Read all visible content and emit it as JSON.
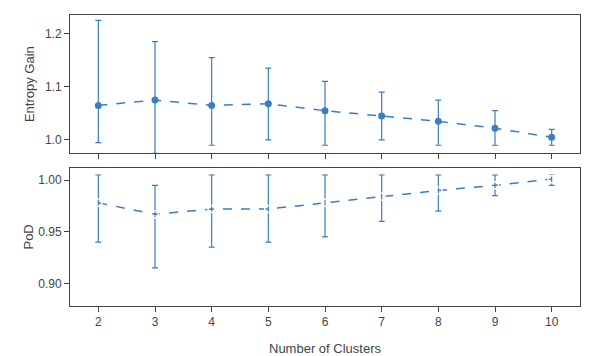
{
  "chart_data": [
    {
      "type": "line",
      "x": [
        2,
        3,
        4,
        5,
        6,
        7,
        8,
        9,
        10
      ],
      "values": [
        1.065,
        1.075,
        1.065,
        1.068,
        1.055,
        1.045,
        1.035,
        1.022,
        1.005
      ],
      "error_plus": [
        0.16,
        0.11,
        0.09,
        0.067,
        0.055,
        0.045,
        0.04,
        0.033,
        0.015
      ],
      "error_minus": [
        0.07,
        0.1,
        0.075,
        0.068,
        0.065,
        0.045,
        0.045,
        0.032,
        0.015
      ],
      "color": "#3a7ebf",
      "line_style": "dashed",
      "marker": "circle",
      "ylabel": "Entropy Gain",
      "xlim": [
        1.5,
        10.5
      ],
      "xticks": [
        2,
        3,
        4,
        5,
        6,
        7,
        8,
        9,
        10
      ],
      "ylim": [
        0.975,
        1.235
      ],
      "yticks": [
        {
          "value": 1.0,
          "label": "1.0"
        },
        1.1,
        1.2
      ],
      "tick_labels": "y",
      "grid": false
    },
    {
      "type": "line",
      "x": [
        2,
        3,
        4,
        5,
        6,
        7,
        8,
        9,
        10
      ],
      "values": [
        0.978,
        0.967,
        0.972,
        0.972,
        0.978,
        0.984,
        0.99,
        0.995,
        1.001
      ],
      "error_plus": [
        0.027,
        0.028,
        0.033,
        0.033,
        0.027,
        0.021,
        0.015,
        0.01,
        0.004
      ],
      "error_minus": [
        0.038,
        0.052,
        0.037,
        0.032,
        0.033,
        0.024,
        0.02,
        0.01,
        0.006
      ],
      "color": "#3a7ebf",
      "line_style": "dashed",
      "marker": "square-open",
      "xlabel": "Number of Clusters",
      "ylabel": "PoD",
      "xlim": [
        1.5,
        10.5
      ],
      "xticks": [
        2,
        3,
        4,
        5,
        6,
        7,
        8,
        9,
        10
      ],
      "ylim": [
        0.878,
        1.012
      ],
      "yticks": [
        {
          "value": 0.9,
          "label": "0.90"
        },
        0.95,
        {
          "value": 1.0,
          "label": "1.00"
        }
      ],
      "grid": false
    }
  ]
}
